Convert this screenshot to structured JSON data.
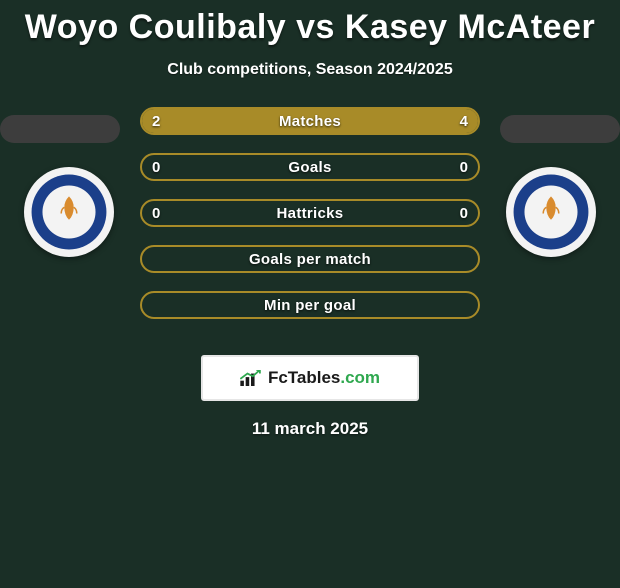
{
  "title": "Woyo Coulibaly vs Kasey McAteer",
  "subtitle": "Club competitions, Season 2024/2025",
  "date": "11 march 2025",
  "brand": {
    "name": "FcTables",
    "suffix": ".com"
  },
  "colors": {
    "background": "#1a2f26",
    "bar_border": "#a88b28",
    "bar_fill": "#a88b28",
    "pill": "#3d3d3d",
    "crest_bg": "#f3f3f3",
    "crest_ring": "#1b3f8a",
    "white": "#ffffff"
  },
  "rows": [
    {
      "label": "Matches",
      "left": "2",
      "right": "4",
      "left_pct": 33,
      "right_pct": 67
    },
    {
      "label": "Goals",
      "left": "0",
      "right": "0",
      "left_pct": 0,
      "right_pct": 0
    },
    {
      "label": "Hattricks",
      "left": "0",
      "right": "0",
      "left_pct": 0,
      "right_pct": 0
    },
    {
      "label": "Goals per match",
      "left": "",
      "right": "",
      "left_pct": 0,
      "right_pct": 0
    },
    {
      "label": "Min per goal",
      "left": "",
      "right": "",
      "left_pct": 0,
      "right_pct": 0
    }
  ],
  "crest_label": "LEICESTER CITY FOOTBALL CLUB"
}
